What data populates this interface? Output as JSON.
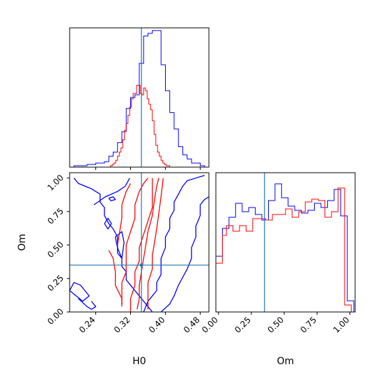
{
  "chart_data": [
    {
      "panel": "H0 marginal",
      "type": "histogram",
      "xlim": [
        0.18,
        0.5
      ],
      "truth_line": 0.345,
      "truth_color": "#1f77b4",
      "series": [
        {
          "color": "#0000ff",
          "bin_edges": [
            0.18,
            0.19,
            0.2,
            0.21,
            0.22,
            0.23,
            0.24,
            0.25,
            0.26,
            0.27,
            0.28,
            0.29,
            0.3,
            0.31,
            0.32,
            0.33,
            0.34,
            0.35,
            0.36,
            0.37,
            0.38,
            0.39,
            0.4,
            0.41,
            0.42,
            0.43,
            0.44,
            0.45,
            0.46,
            0.47,
            0.48,
            0.49,
            0.5
          ],
          "counts": [
            0,
            1,
            1,
            1,
            2,
            2,
            3,
            3,
            4,
            8,
            11,
            18,
            26,
            43,
            51,
            53,
            76,
            96,
            98,
            100,
            100,
            75,
            56,
            40,
            28,
            15,
            9,
            6,
            3,
            3,
            1,
            0
          ]
        },
        {
          "color": "#ff0000",
          "bin_edges": [
            0.27,
            0.274,
            0.278,
            0.282,
            0.286,
            0.29,
            0.294,
            0.298,
            0.302,
            0.306,
            0.31,
            0.314,
            0.318,
            0.322,
            0.326,
            0.33,
            0.334,
            0.338,
            0.342,
            0.346,
            0.35,
            0.354,
            0.358,
            0.362,
            0.366,
            0.37,
            0.374,
            0.378,
            0.382,
            0.386,
            0.39,
            0.394,
            0.398,
            0.402,
            0.406,
            0.41,
            0.414,
            0.418
          ],
          "counts": [
            0,
            1,
            2,
            3,
            5,
            8,
            11,
            14,
            20,
            27,
            32,
            38,
            44,
            50,
            54,
            54,
            60,
            60,
            54,
            53,
            58,
            56,
            50,
            46,
            42,
            34,
            24,
            16,
            11,
            8,
            5,
            3,
            2,
            1,
            1,
            0,
            0
          ]
        }
      ],
      "ylim": [
        0,
        102
      ]
    },
    {
      "panel": "Om vs H0",
      "type": "contour",
      "xlabel": "H0",
      "ylabel": "Om",
      "xlim": [
        0.18,
        0.5
      ],
      "ylim": [
        0.0,
        1.04
      ],
      "xticks": [
        "0.24",
        "0.32",
        "0.40",
        "0.48"
      ],
      "xtick_values": [
        0.24,
        0.32,
        0.4,
        0.48
      ],
      "yticks": [
        "0.00",
        "0.25",
        "0.50",
        "0.75",
        "1.00"
      ],
      "ytick_values": [
        0.0,
        0.25,
        0.5,
        0.75,
        1.0
      ],
      "truth": [
        0.345,
        0.35
      ],
      "truth_color": "#1f77b4",
      "blue_contours": [
        [
          [
            0.19,
            1.0
          ],
          [
            0.2,
            0.96
          ],
          [
            0.23,
            0.92
          ],
          [
            0.25,
            0.88
          ],
          [
            0.25,
            0.82
          ],
          [
            0.26,
            0.78
          ],
          [
            0.26,
            0.72
          ],
          [
            0.27,
            0.66
          ],
          [
            0.28,
            0.62
          ],
          [
            0.29,
            0.56
          ],
          [
            0.29,
            0.5
          ],
          [
            0.29,
            0.44
          ],
          [
            0.3,
            0.4
          ],
          [
            0.3,
            0.34
          ],
          [
            0.31,
            0.3
          ],
          [
            0.31,
            0.24
          ],
          [
            0.32,
            0.2
          ],
          [
            0.33,
            0.16
          ],
          [
            0.34,
            0.12
          ],
          [
            0.35,
            0.08
          ],
          [
            0.36,
            0.04
          ],
          [
            0.37,
            0.0
          ]
        ],
        [
          [
            0.35,
            0.0
          ],
          [
            0.36,
            0.08
          ],
          [
            0.37,
            0.12
          ],
          [
            0.38,
            0.16
          ],
          [
            0.38,
            0.22
          ],
          [
            0.39,
            0.28
          ],
          [
            0.39,
            0.34
          ],
          [
            0.39,
            0.4
          ],
          [
            0.4,
            0.48
          ],
          [
            0.4,
            0.56
          ],
          [
            0.41,
            0.62
          ],
          [
            0.41,
            0.7
          ],
          [
            0.42,
            0.76
          ],
          [
            0.42,
            0.82
          ],
          [
            0.43,
            0.88
          ],
          [
            0.44,
            0.94
          ],
          [
            0.45,
            0.98
          ],
          [
            0.47,
            1.0
          ],
          [
            0.49,
            1.02
          ]
        ],
        [
          [
            0.39,
            0.0
          ],
          [
            0.41,
            0.06
          ],
          [
            0.42,
            0.12
          ],
          [
            0.43,
            0.2
          ],
          [
            0.44,
            0.26
          ],
          [
            0.45,
            0.32
          ],
          [
            0.46,
            0.4
          ],
          [
            0.46,
            0.48
          ],
          [
            0.47,
            0.56
          ],
          [
            0.47,
            0.64
          ],
          [
            0.48,
            0.72
          ],
          [
            0.48,
            0.8
          ],
          [
            0.49,
            0.84
          ],
          [
            0.5,
            0.86
          ]
        ],
        [
          [
            0.236,
            0.8
          ],
          [
            0.262,
            0.86
          ],
          [
            0.29,
            0.9
          ],
          [
            0.308,
            0.94
          ],
          [
            0.318,
            1.0
          ]
        ],
        [
          [
            0.3,
            0.4
          ],
          [
            0.29,
            0.48
          ],
          [
            0.285,
            0.56
          ],
          [
            0.3,
            0.6
          ],
          [
            0.305,
            0.52
          ],
          [
            0.3,
            0.4
          ]
        ],
        [
          [
            0.27,
            0.85
          ],
          [
            0.28,
            0.86
          ],
          [
            0.285,
            0.84
          ],
          [
            0.275,
            0.83
          ],
          [
            0.27,
            0.85
          ]
        ],
        [
          [
            0.18,
            0.16
          ],
          [
            0.19,
            0.22
          ],
          [
            0.205,
            0.2
          ],
          [
            0.215,
            0.16
          ],
          [
            0.225,
            0.12
          ],
          [
            0.21,
            0.08
          ],
          [
            0.195,
            0.12
          ],
          [
            0.18,
            0.16
          ]
        ],
        [
          [
            0.2,
            0.1
          ],
          [
            0.22,
            0.04
          ],
          [
            0.23,
            0.02
          ],
          [
            0.24,
            0.04
          ],
          [
            0.23,
            0.08
          ]
        ],
        [
          [
            0.26,
            0.66
          ],
          [
            0.268,
            0.7
          ],
          [
            0.276,
            0.66
          ],
          [
            0.268,
            0.62
          ],
          [
            0.26,
            0.66
          ]
        ]
      ],
      "red_contours": [
        [
          [
            0.3,
            0.06
          ],
          [
            0.3,
            0.14
          ],
          [
            0.3,
            0.22
          ],
          [
            0.31,
            0.3
          ],
          [
            0.31,
            0.4
          ],
          [
            0.31,
            0.5
          ],
          [
            0.32,
            0.6
          ],
          [
            0.33,
            0.7
          ],
          [
            0.33,
            0.8
          ],
          [
            0.34,
            0.9
          ],
          [
            0.35,
            0.96
          ],
          [
            0.36,
            1.0
          ]
        ],
        [
          [
            0.32,
            0.0
          ],
          [
            0.32,
            0.1
          ],
          [
            0.33,
            0.2
          ],
          [
            0.33,
            0.3
          ],
          [
            0.34,
            0.38
          ],
          [
            0.34,
            0.48
          ],
          [
            0.35,
            0.58
          ],
          [
            0.36,
            0.68
          ],
          [
            0.37,
            0.78
          ],
          [
            0.37,
            0.9
          ],
          [
            0.37,
            1.0
          ]
        ],
        [
          [
            0.335,
            0.02
          ],
          [
            0.34,
            0.1
          ],
          [
            0.34,
            0.2
          ],
          [
            0.345,
            0.3
          ],
          [
            0.35,
            0.4
          ],
          [
            0.355,
            0.5
          ],
          [
            0.36,
            0.6
          ],
          [
            0.37,
            0.72
          ],
          [
            0.375,
            0.84
          ],
          [
            0.38,
            0.94
          ],
          [
            0.385,
            1.0
          ]
        ],
        [
          [
            0.36,
            0.02
          ],
          [
            0.36,
            0.12
          ],
          [
            0.36,
            0.22
          ],
          [
            0.37,
            0.32
          ],
          [
            0.37,
            0.42
          ],
          [
            0.375,
            0.52
          ],
          [
            0.38,
            0.62
          ],
          [
            0.385,
            0.74
          ],
          [
            0.39,
            0.86
          ],
          [
            0.395,
            1.0
          ]
        ],
        [
          [
            0.29,
            0.5
          ],
          [
            0.295,
            0.6
          ],
          [
            0.3,
            0.7
          ],
          [
            0.3,
            0.8
          ],
          [
            0.31,
            0.9
          ],
          [
            0.32,
            0.96
          ]
        ],
        [
          [
            0.27,
            0.46
          ],
          [
            0.28,
            0.4
          ],
          [
            0.285,
            0.3
          ],
          [
            0.285,
            0.2
          ],
          [
            0.3,
            0.1
          ],
          [
            0.3,
            0.04
          ]
        ]
      ]
    },
    {
      "panel": "Om marginal",
      "type": "histogram",
      "xlabel": "Om",
      "xlim": [
        -0.02,
        1.04
      ],
      "xticks": [
        "0.00",
        "0.25",
        "0.50",
        "0.75",
        "1.00"
      ],
      "xtick_values": [
        0.0,
        0.25,
        0.5,
        0.75,
        1.0
      ],
      "truth_line": 0.35,
      "truth_color": "#1f77b4",
      "ylim": [
        0,
        1
      ],
      "series": [
        {
          "color": "#0000ff",
          "bin_edges": [
            -0.02,
            0.03,
            0.08,
            0.13,
            0.18,
            0.23,
            0.28,
            0.33,
            0.38,
            0.43,
            0.48,
            0.53,
            0.58,
            0.63,
            0.68,
            0.73,
            0.78,
            0.83,
            0.88,
            0.93,
            0.98,
            1.03
          ],
          "counts": [
            0.4,
            0.6,
            0.68,
            0.78,
            0.72,
            0.75,
            0.7,
            0.66,
            0.8,
            0.92,
            0.82,
            0.76,
            0.73,
            0.71,
            0.73,
            0.78,
            0.75,
            0.8,
            0.88,
            0.69,
            0.08
          ]
        },
        {
          "color": "#ff0000",
          "bin_edges": [
            -0.02,
            0.03,
            0.06,
            0.11,
            0.16,
            0.21,
            0.26,
            0.31,
            0.36,
            0.41,
            0.46,
            0.51,
            0.56,
            0.61,
            0.66,
            0.71,
            0.76,
            0.81,
            0.86,
            0.91,
            0.96,
            1.01
          ],
          "counts": [
            0.35,
            0.55,
            0.62,
            0.58,
            0.62,
            0.58,
            0.67,
            0.67,
            0.66,
            0.7,
            0.7,
            0.74,
            0.68,
            0.72,
            0.79,
            0.81,
            0.8,
            0.68,
            0.72,
            0.89,
            0.05
          ]
        }
      ]
    }
  ]
}
